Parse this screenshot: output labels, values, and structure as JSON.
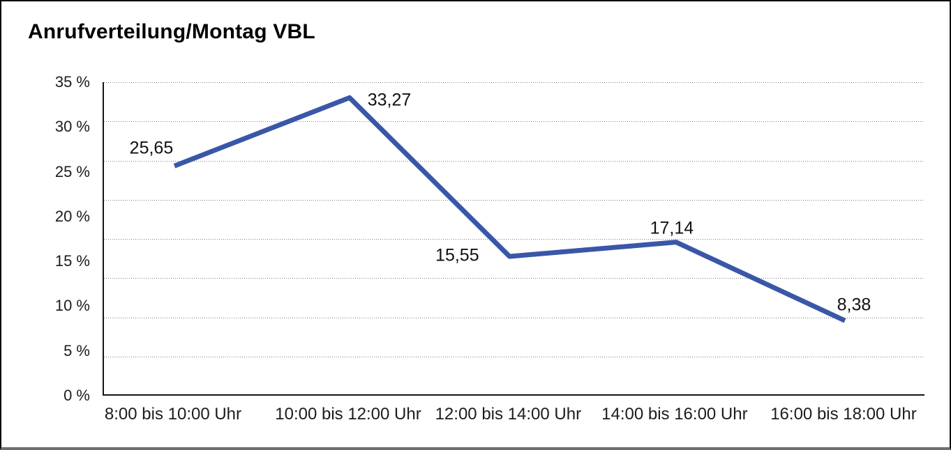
{
  "chart_data": {
    "type": "line",
    "title": "Anrufverteilung/Montag VBL",
    "categories": [
      "8:00 bis 10:00 Uhr",
      "10:00 bis 12:00 Uhr",
      "12:00 bis 14:00 Uhr",
      "14:00 bis 16:00 Uhr",
      "16:00 bis 18:00 Uhr"
    ],
    "values": [
      25.65,
      33.27,
      15.55,
      17.14,
      8.38
    ],
    "point_labels": [
      "25,65",
      "33,27",
      "15,55",
      "17,14",
      "8,38"
    ],
    "y_tick_labels": [
      "35 %",
      "30 %",
      "25 %",
      "20 %",
      "15 %",
      "10 %",
      "5 %",
      "0 %"
    ],
    "ylim": [
      0,
      35
    ],
    "xlabel": "",
    "ylabel": "",
    "legend": "none",
    "grid": "horizontal-dotted",
    "line_color": "#3A57A7",
    "axis_color": "#141414",
    "gridline_color": "#7f7f7f",
    "text_color": "#1c1c1c"
  }
}
